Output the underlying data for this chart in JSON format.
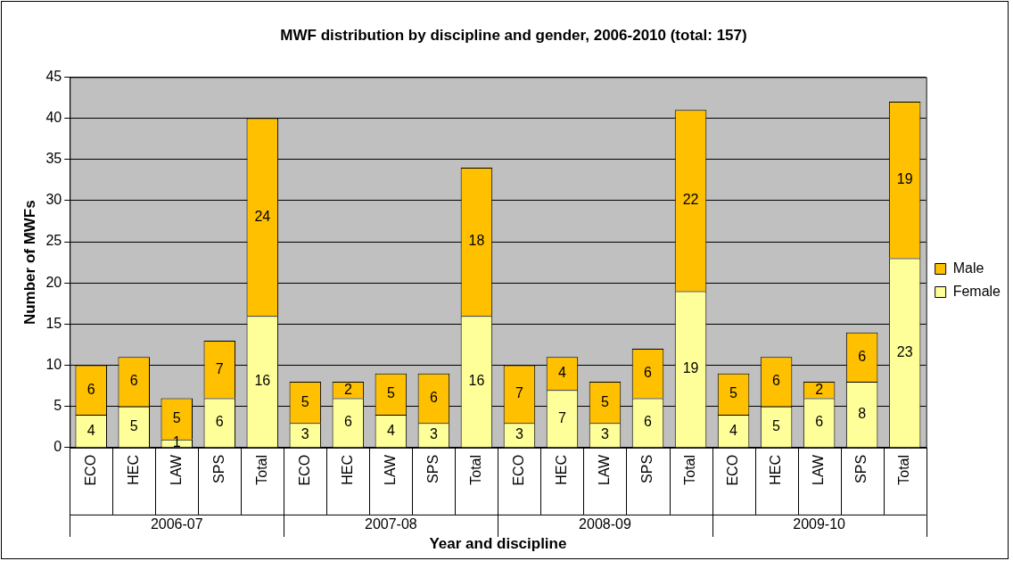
{
  "chart_data": {
    "type": "bar",
    "title": "MWF distribution by discipline and gender, 2006-2010 (total: 157)",
    "xlabel": "Year and discipline",
    "ylabel": "Number of MWFs",
    "categories": [
      "ECO",
      "HEC",
      "LAW",
      "SPS",
      "Total",
      "ECO",
      "HEC",
      "LAW",
      "SPS",
      "Total",
      "ECO",
      "HEC",
      "LAW",
      "SPS",
      "Total",
      "ECO",
      "HEC",
      "LAW",
      "SPS",
      "Total"
    ],
    "series": [
      {
        "name": "Female",
        "color": "#ffff99",
        "values": [
          4,
          5,
          1,
          6,
          16,
          3,
          6,
          4,
          3,
          16,
          3,
          7,
          3,
          6,
          19,
          4,
          5,
          6,
          8,
          23
        ]
      },
      {
        "name": "Male",
        "color": "#ffc000",
        "values": [
          6,
          6,
          5,
          7,
          24,
          5,
          2,
          5,
          6,
          18,
          7,
          4,
          5,
          6,
          22,
          5,
          6,
          2,
          6,
          19
        ]
      }
    ],
    "stacked": true,
    "data_labels": true,
    "ylim": [
      0,
      45
    ],
    "yticks": [
      0,
      5,
      10,
      15,
      20,
      25,
      30,
      35,
      40,
      45
    ],
    "grid": "y",
    "legend": "right",
    "annotations": [
      "2006-07",
      "2007-08",
      "2008-09",
      "2009-10"
    ]
  }
}
